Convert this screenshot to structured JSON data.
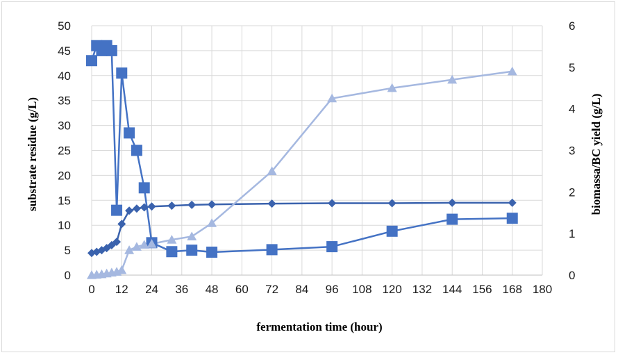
{
  "chart_data": {
    "type": "line",
    "xlabel": "fermentation time (hour)",
    "ylabel_left": "substrate residue (g/L)",
    "ylabel_right": "biomassa/BC yield (g/L)",
    "xlim": [
      0,
      180
    ],
    "ylim_left": [
      0,
      50
    ],
    "ylim_right": [
      0,
      6
    ],
    "x_ticks": [
      0,
      12,
      24,
      36,
      48,
      60,
      72,
      84,
      96,
      108,
      120,
      132,
      144,
      156,
      168,
      180
    ],
    "y_left_ticks": [
      0,
      5,
      10,
      15,
      20,
      25,
      30,
      35,
      40,
      45,
      50
    ],
    "y_right_ticks": [
      0,
      1,
      2,
      3,
      4,
      5,
      6
    ],
    "grid": true,
    "legend": "none",
    "series": [
      {
        "axis": "left",
        "marker": "square",
        "color": "#4472c4",
        "x": [
          0,
          2,
          4,
          6,
          8,
          10,
          12,
          15,
          18,
          21,
          24,
          32,
          40,
          48,
          72,
          96,
          120,
          144,
          168
        ],
        "y": [
          43,
          46,
          45,
          46,
          45,
          13,
          40.5,
          28.5,
          25,
          17.5,
          6.5,
          4.7,
          5,
          4.6,
          5.1,
          5.7,
          8.8,
          11.2,
          11.4
        ]
      },
      {
        "axis": "right",
        "marker": "diamond",
        "color": "#3a62ad",
        "x": [
          0,
          2,
          4,
          6,
          8,
          10,
          12,
          15,
          18,
          21,
          24,
          32,
          40,
          48,
          72,
          96,
          120,
          144,
          168
        ],
        "y": [
          0.53,
          0.56,
          0.6,
          0.65,
          0.72,
          0.8,
          1.23,
          1.55,
          1.6,
          1.63,
          1.65,
          1.67,
          1.69,
          1.7,
          1.72,
          1.73,
          1.73,
          1.74,
          1.74
        ]
      },
      {
        "axis": "right",
        "marker": "triangle",
        "color": "#a5b8e0",
        "x": [
          0,
          2,
          4,
          6,
          8,
          10,
          12,
          15,
          18,
          21,
          24,
          32,
          40,
          48,
          72,
          96,
          120,
          144,
          168
        ],
        "y": [
          0,
          0.01,
          0.02,
          0.04,
          0.06,
          0.08,
          0.12,
          0.6,
          0.68,
          0.73,
          0.75,
          0.85,
          0.93,
          1.25,
          2.5,
          4.25,
          4.5,
          4.7,
          4.9
        ]
      }
    ]
  }
}
